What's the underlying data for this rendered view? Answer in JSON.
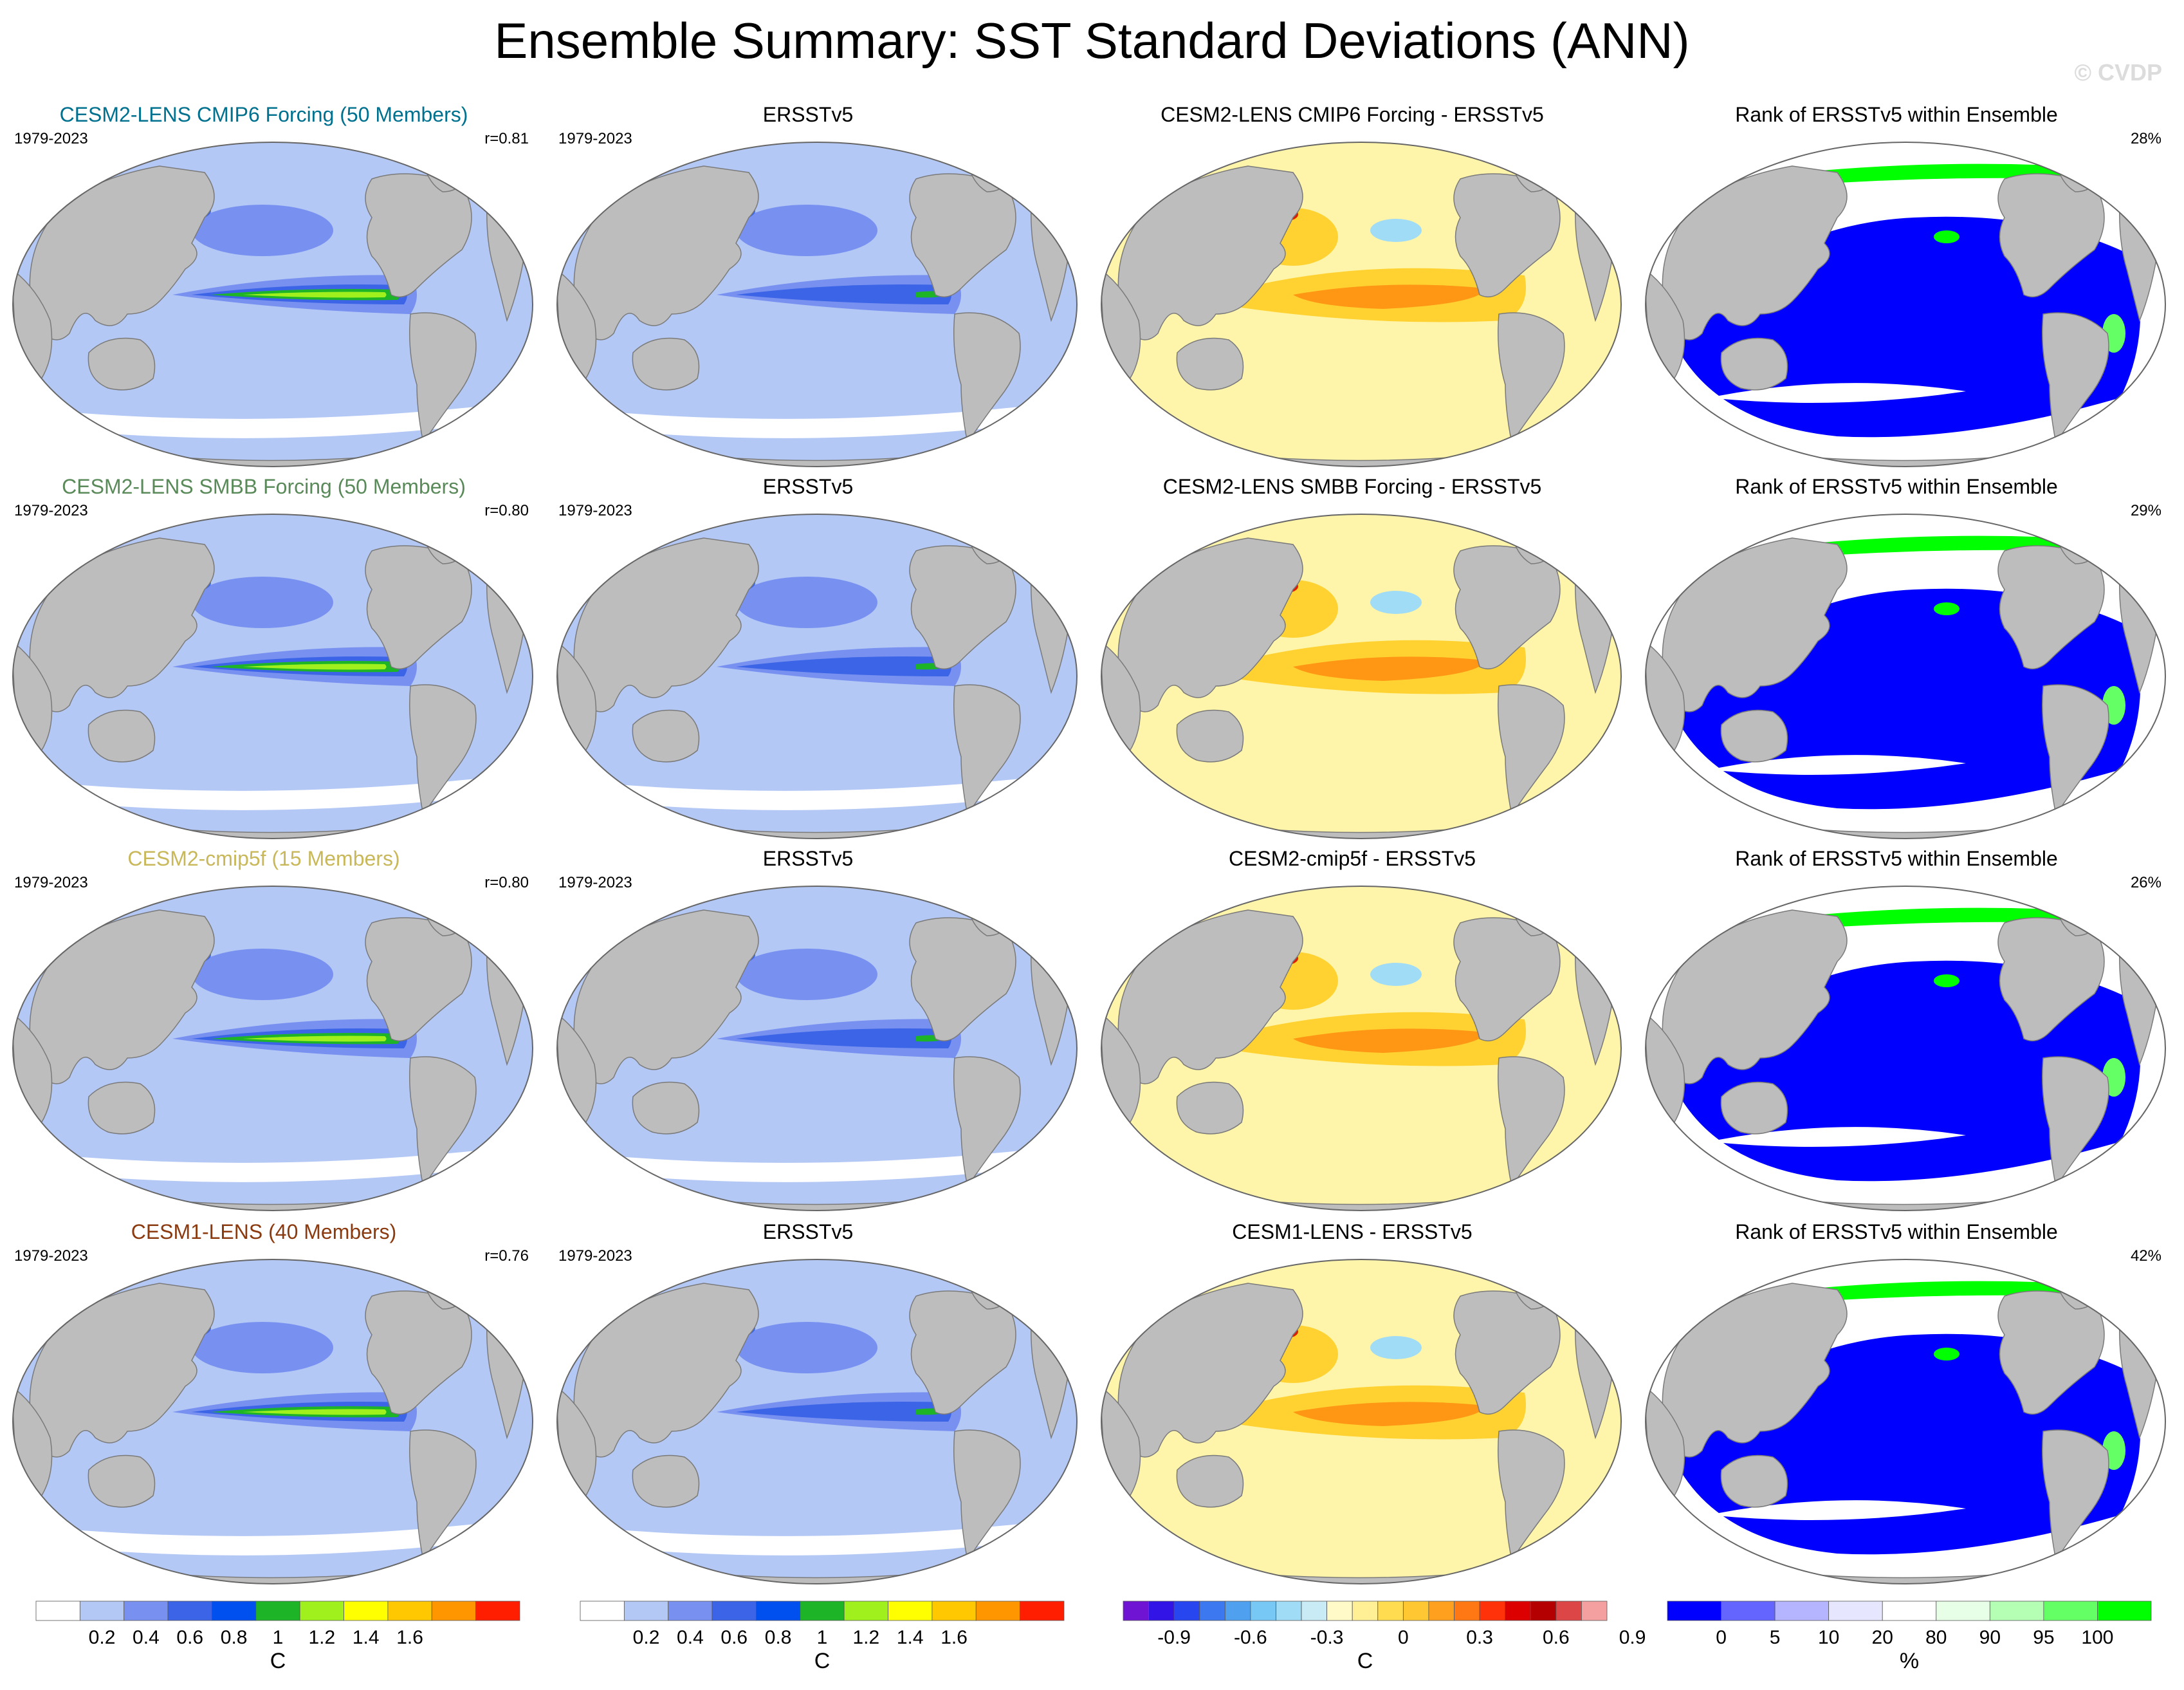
{
  "title": "Ensemble Summary: SST Standard Deviations (ANN)",
  "watermark": "© CVDP",
  "colors": {
    "land": "#bdbdbd",
    "ocean_low": "#b4c8f5",
    "blue2": "#7891f0",
    "blue3": "#3c64e6",
    "green": "#1eb428",
    "lime": "#a0f01e",
    "diff_light": "#fff5aa",
    "diff_mid": "#ffd232",
    "diff_orange": "#ff9614",
    "diff_red": "#dc1e00",
    "rank_blue": "#0000ff",
    "rank_green": "#00ff00"
  },
  "rows": [
    {
      "ensemble": {
        "title": "CESM2-LENS CMIP6 Forcing (50 Members)",
        "title_color": "#00708f",
        "period": "1979-2023",
        "stat": "r=0.81"
      },
      "obs": {
        "title": "ERSSTv5",
        "period": "1979-2023"
      },
      "diff": {
        "title": "CESM2-LENS CMIP6 Forcing - ERSSTv5"
      },
      "rank": {
        "title": "Rank of ERSSTv5 within Ensemble",
        "stat": "28%"
      }
    },
    {
      "ensemble": {
        "title": "CESM2-LENS SMBB Forcing (50 Members)",
        "title_color": "#5a8a5a",
        "period": "1979-2023",
        "stat": "r=0.80"
      },
      "obs": {
        "title": "ERSSTv5",
        "period": "1979-2023"
      },
      "diff": {
        "title": "CESM2-LENS SMBB Forcing - ERSSTv5"
      },
      "rank": {
        "title": "Rank of ERSSTv5 within Ensemble",
        "stat": "29%"
      }
    },
    {
      "ensemble": {
        "title": "CESM2-cmip5f (15 Members)",
        "title_color": "#c8b85a",
        "period": "1979-2023",
        "stat": "r=0.80"
      },
      "obs": {
        "title": "ERSSTv5",
        "period": "1979-2023"
      },
      "diff": {
        "title": "CESM2-cmip5f - ERSSTv5"
      },
      "rank": {
        "title": "Rank of ERSSTv5 within Ensemble",
        "stat": "26%"
      }
    },
    {
      "ensemble": {
        "title": "CESM1-LENS (40 Members)",
        "title_color": "#8b3a0f",
        "period": "1979-2023",
        "stat": "r=0.76"
      },
      "obs": {
        "title": "ERSSTv5",
        "period": "1979-2023"
      },
      "diff": {
        "title": "CESM1-LENS - ERSSTv5"
      },
      "rank": {
        "title": "Rank of ERSSTv5 within Ensemble",
        "stat": "42%"
      }
    }
  ],
  "colorbars": [
    {
      "unit": "C",
      "colors": [
        "#ffffff",
        "#b4c8f5",
        "#7891f0",
        "#3c64e6",
        "#0050f0",
        "#1eb428",
        "#a0f01e",
        "#ffff00",
        "#ffc800",
        "#ff9600",
        "#ff1e00"
      ],
      "ticks": [
        "0.2",
        "0.4",
        "0.6",
        "0.8",
        "1",
        "1.2",
        "1.4",
        "1.6"
      ]
    },
    {
      "unit": "C",
      "colors": [
        "#ffffff",
        "#b4c8f5",
        "#7891f0",
        "#3c64e6",
        "#0050f0",
        "#1eb428",
        "#a0f01e",
        "#ffff00",
        "#ffc800",
        "#ff9600",
        "#ff1e00"
      ],
      "ticks": [
        "0.2",
        "0.4",
        "0.6",
        "0.8",
        "1",
        "1.2",
        "1.4",
        "1.6"
      ]
    },
    {
      "unit": "C",
      "colors": [
        "#6e14d2",
        "#3214e6",
        "#2846f0",
        "#3c78f0",
        "#50a0f0",
        "#78c8f5",
        "#a0dcf5",
        "#c8ebf5",
        "#fffac8",
        "#fff096",
        "#ffdc50",
        "#ffc832",
        "#ffa01e",
        "#ff7814",
        "#ff320a",
        "#dc0000",
        "#b40000",
        "#dc4646",
        "#f5a0a0"
      ],
      "ticks": [
        "-0.9",
        "-0.6",
        "-0.3",
        "0",
        "0.3",
        "0.6",
        "0.9"
      ]
    },
    {
      "unit": "%",
      "colors": [
        "#0000ff",
        "#6464ff",
        "#b4b4ff",
        "#e6e6ff",
        "#ffffff",
        "#e6ffe6",
        "#b4ffb4",
        "#64ff64",
        "#00ff00"
      ],
      "ticks": [
        "0",
        "5",
        "10",
        "20",
        "80",
        "90",
        "95",
        "100"
      ]
    }
  ]
}
